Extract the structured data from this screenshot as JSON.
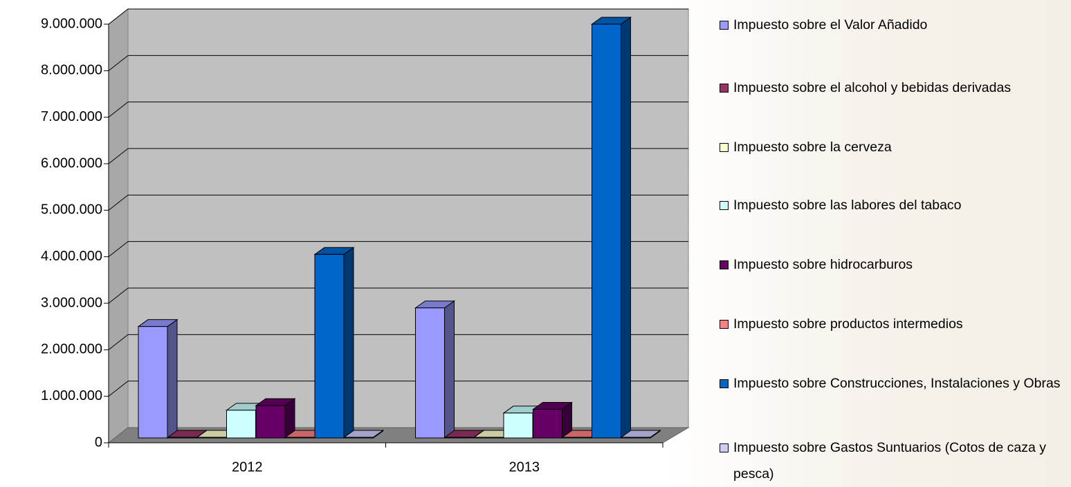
{
  "chart_data": {
    "type": "bar3d",
    "categories": [
      "2012",
      "2013"
    ],
    "series": [
      {
        "name": "Impuesto sobre el Valor Añadido",
        "color": "#9999ff",
        "values": [
          2500000,
          2900000
        ]
      },
      {
        "name": "Impuesto sobre el alcohol y bebidas derivadas",
        "color": "#993366",
        "values": [
          30000,
          30000
        ]
      },
      {
        "name": "Impuesto sobre la cerveza",
        "color": "#ffffcc",
        "values": [
          5000,
          5000
        ]
      },
      {
        "name": "Impuesto sobre las labores del tabaco",
        "color": "#ccffff",
        "values": [
          700000,
          640000
        ]
      },
      {
        "name": "Impuesto sobre hidrocarburos",
        "color": "#660066",
        "values": [
          800000,
          720000
        ]
      },
      {
        "name": "Impuesto sobre productos intermedios",
        "color": "#ff8080",
        "values": [
          20000,
          20000
        ]
      },
      {
        "name": "Impuesto sobre Construcciones, Instalaciones y Obras",
        "color": "#0066cc",
        "values": [
          4050000,
          9000000
        ]
      },
      {
        "name": "Impuesto sobre Gastos Suntuarios (Cotos de caza y pesca)",
        "color": "#ccccff",
        "values": [
          5000,
          5000
        ]
      }
    ],
    "ylim": [
      0,
      9000000
    ],
    "yticks": [
      0,
      {
        "value": 1000000,
        "label": "1.000.000"
      },
      {
        "value": 2000000,
        "label": "2.000.000"
      },
      {
        "value": 3000000,
        "label": "3.000.000"
      },
      {
        "value": 4000000,
        "label": "4.000.000"
      },
      {
        "value": 5000000,
        "label": "5.000.000"
      },
      {
        "value": 6000000,
        "label": "6.000.000"
      },
      {
        "value": 7000000,
        "label": "7.000.000"
      },
      {
        "value": 8000000,
        "label": "8.000.000"
      },
      {
        "value": 9000000,
        "label": "9.000.000"
      }
    ],
    "grid": true,
    "legend": "right"
  }
}
